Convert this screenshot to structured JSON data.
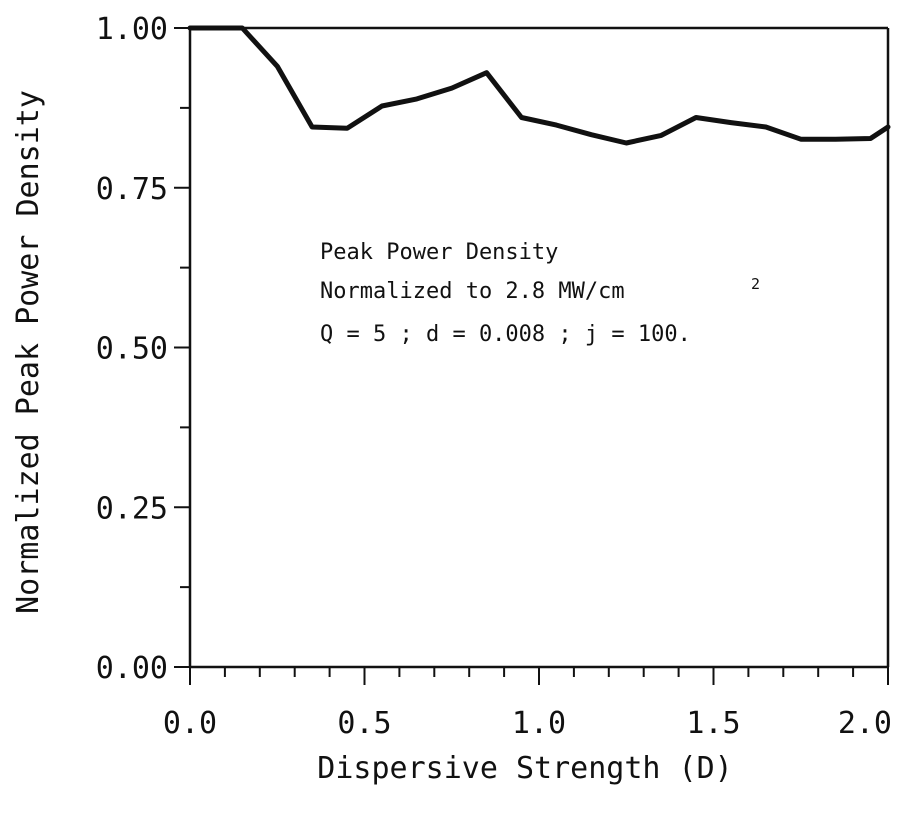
{
  "chart_data": {
    "type": "line",
    "title": "",
    "xlabel": "Dispersive Strength (D)",
    "ylabel": "Normalized Peak Power Density",
    "xlim": [
      0.0,
      2.0
    ],
    "ylim": [
      0.0,
      1.0
    ],
    "x_ticks": [
      "0.0",
      "0.5",
      "1.0",
      "1.5",
      "2.0"
    ],
    "y_ticks": [
      "0.00",
      "0.25",
      "0.50",
      "0.75",
      "1.00"
    ],
    "grid": false,
    "legend": "none",
    "annotation": {
      "line1": "Peak Power Density",
      "line2": "Normalized to 2.8 MW/cm",
      "line2_sup": "2",
      "line3": "Q = 5 ; d = 0.008 ; j = 100."
    },
    "series": [
      {
        "x": [
          0.0,
          0.05,
          0.15,
          0.25,
          0.35,
          0.45,
          0.55,
          0.65,
          0.75,
          0.85,
          0.95,
          1.05,
          1.15,
          1.25,
          1.35,
          1.45,
          1.55,
          1.65,
          1.75,
          1.85,
          1.95,
          2.0
        ],
        "y": [
          1.0,
          1.0,
          1.0,
          0.94,
          0.845,
          0.843,
          0.878,
          0.889,
          0.906,
          0.93,
          0.86,
          0.848,
          0.833,
          0.82,
          0.832,
          0.86,
          0.852,
          0.845,
          0.826,
          0.826,
          0.827,
          0.845
        ]
      }
    ],
    "line_color": "#111111"
  }
}
